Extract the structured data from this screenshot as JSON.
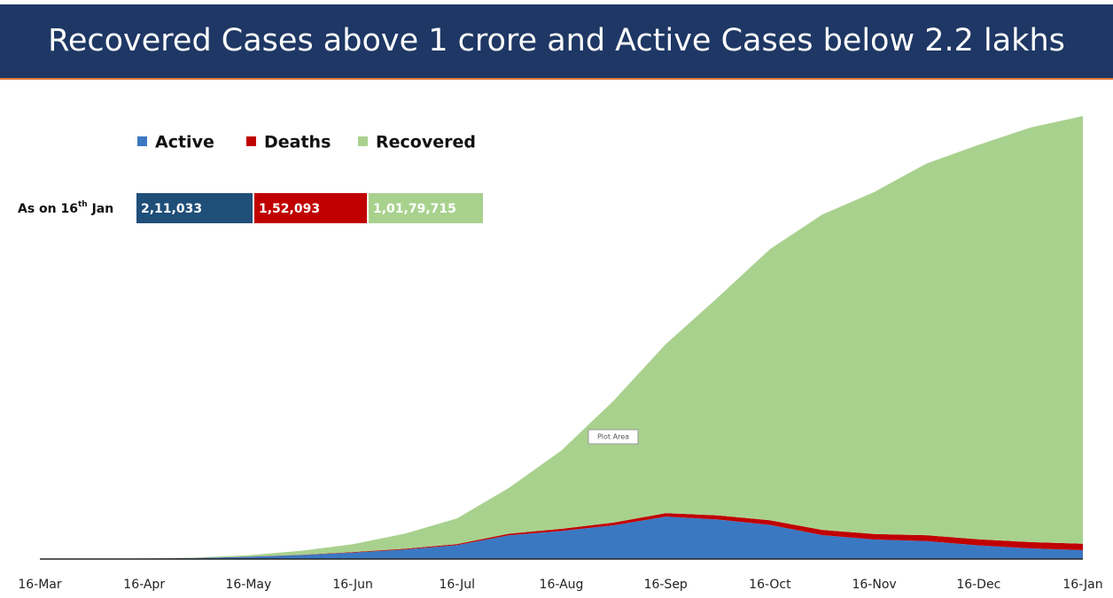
{
  "chart_data": {
    "type": "area",
    "stacked": true,
    "title": "Recovered Cases above 1 crore and Active Cases below 2.2 lakhs",
    "categories": [
      "16-Mar",
      null,
      "16-Apr",
      null,
      "16-May",
      null,
      "16-Jun",
      null,
      "16-Jul",
      null,
      "16-Aug",
      null,
      "16-Sep",
      null,
      "16-Oct",
      null,
      "16-Nov",
      null,
      "16-Dec",
      null,
      "16-Jan"
    ],
    "series": [
      {
        "name": "Active",
        "color": "#3b78c2",
        "values": [
          100,
          1500,
          10500,
          25000,
          53000,
          95000,
          153000,
          227000,
          331000,
          566000,
          668000,
          801000,
          1010000,
          940000,
          812000,
          570000,
          465000,
          428000,
          324000,
          254000,
          211033
        ]
      },
      {
        "name": "Deaths",
        "color": "#c00000",
        "values": [
          2,
          40,
          420,
          1200,
          2800,
          5400,
          12000,
          17400,
          25000,
          36500,
          50900,
          65300,
          82000,
          98700,
          111000,
          122000,
          130000,
          138000,
          144000,
          149000,
          152093
        ]
      },
      {
        "name": "Recovered",
        "color": "#a9d18e",
        "values": [
          13,
          150,
          1700,
          9000,
          33000,
          95000,
          187000,
          360000,
          612000,
          1094000,
          1863000,
          2900000,
          4020000,
          5187000,
          6453000,
          7504000,
          8140000,
          8847000,
          9389000,
          9868000,
          10179715
        ]
      }
    ],
    "summary": {
      "label": [
        "As on 16",
        "th",
        " Jan"
      ],
      "colors": [
        "#1f4e79",
        "#c00000",
        "#a9d18e"
      ],
      "values": [
        211033,
        152093,
        10179715
      ],
      "value_labels": [
        "2,11,033",
        "1,52,093",
        "1,01,79,715"
      ]
    },
    "annotation": "Plot Area"
  }
}
